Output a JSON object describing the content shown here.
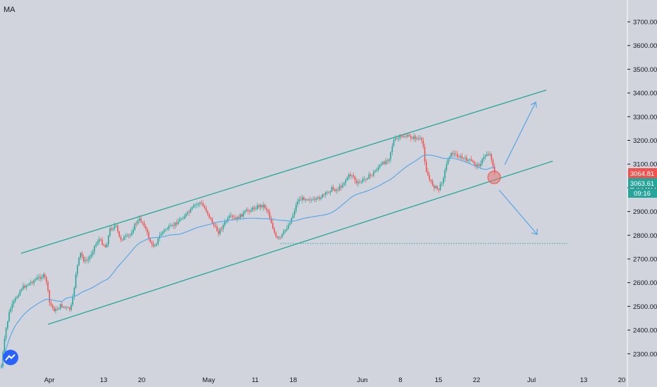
{
  "indicator_label": "MA",
  "chart_data": {
    "type": "candlestick",
    "instrument_hint": "",
    "price_axis": {
      "ticks": [
        "3700.00",
        "3600.00",
        "3500.00",
        "3400.00",
        "3300.00",
        "3200.00",
        "3100.00",
        "3000.00",
        "2900.00",
        "2800.00",
        "2700.00",
        "2600.00",
        "2500.00",
        "2400.00",
        "2300.00"
      ],
      "range": [
        2250,
        3760
      ]
    },
    "time_axis": {
      "labels": [
        "Apr",
        "13",
        "20",
        "May",
        "11",
        "18",
        "Jun",
        "8",
        "15",
        "22",
        "Jul",
        "13",
        "20"
      ]
    },
    "price_labels": [
      {
        "value": "3064.81",
        "color": "#ef5350"
      },
      {
        "value": "3063.61",
        "color": "#26a69a"
      },
      {
        "value": "09:16",
        "color": "#26a69a"
      }
    ],
    "trend_channel": {
      "upper": {
        "start": [
          0.0,
          2725
        ],
        "end": [
          1.0,
          3410
        ]
      },
      "lower": {
        "start": [
          0.06,
          2430
        ],
        "end": [
          1.0,
          3110
        ]
      },
      "color": "#26a69a"
    },
    "support_level": 2770,
    "moving_average_color": "#5aa9e6",
    "up_color": "#26a69a",
    "down_color": "#ef5350",
    "arrows": [
      "up-arrow",
      "down-arrow"
    ],
    "marker": "touch-circle"
  }
}
